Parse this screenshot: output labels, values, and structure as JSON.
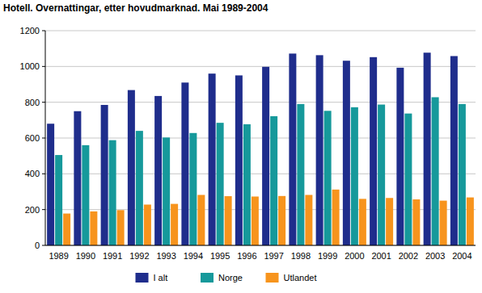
{
  "chart_data": {
    "type": "bar",
    "title": "Hotell. Overnattingar, etter hovudmarknad. Mai 1989-2004",
    "categories": [
      "1989",
      "1990",
      "1991",
      "1992",
      "1993",
      "1994",
      "1995",
      "1996",
      "1997",
      "1998",
      "1999",
      "2000",
      "2001",
      "2002",
      "2003",
      "2004"
    ],
    "series": [
      {
        "name": "I alt",
        "color": "#1f2d8c",
        "values": [
          680,
          750,
          785,
          868,
          835,
          910,
          960,
          950,
          998,
          1072,
          1063,
          1032,
          1052,
          993,
          1077,
          1058
        ]
      },
      {
        "name": "Norge",
        "color": "#16999b",
        "values": [
          505,
          560,
          588,
          640,
          603,
          628,
          685,
          677,
          722,
          790,
          752,
          772,
          787,
          737,
          828,
          790
        ]
      },
      {
        "name": "Utlandet",
        "color": "#f7941d",
        "values": [
          178,
          190,
          197,
          228,
          232,
          282,
          275,
          273,
          276,
          282,
          312,
          260,
          265,
          257,
          250,
          268
        ]
      }
    ],
    "ylim": [
      0,
      1200
    ],
    "yticks": [
      0,
      200,
      400,
      600,
      800,
      1000,
      1200
    ],
    "grid": true,
    "legend": "bottom"
  }
}
